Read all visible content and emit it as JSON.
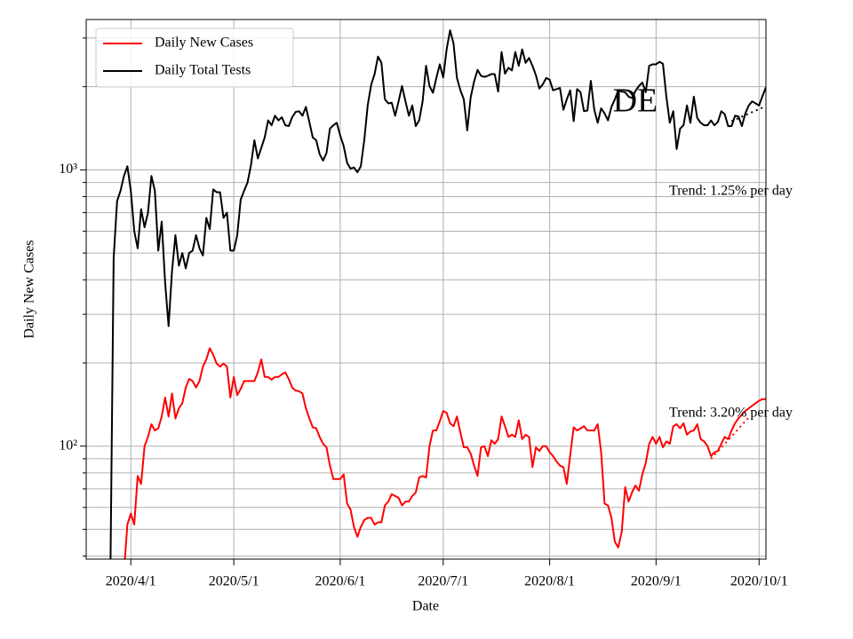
{
  "chart_data": {
    "type": "line",
    "title": "DE",
    "xlabel": "Date",
    "ylabel": "Daily New Cases",
    "yscale": "log",
    "grid": true,
    "legend": "upper left",
    "xlim": [
      "2020/3/19",
      "2020/10/3"
    ],
    "xticks": [
      "2020/4/1",
      "2020/5/1",
      "2020/6/1",
      "2020/7/1",
      "2020/8/1",
      "2020/9/1",
      "2020/10/1"
    ],
    "ylim": [
      39,
      3500
    ],
    "yticks": [
      {
        "value": 100,
        "label": "10²"
      },
      {
        "value": 1000,
        "label": "10³"
      }
    ],
    "yminorticks": [
      40,
      50,
      60,
      70,
      80,
      90,
      200,
      300,
      400,
      500,
      600,
      700,
      800,
      900,
      2000,
      3000
    ],
    "x": [
      "2020/3/26",
      "2020/3/27",
      "2020/3/28",
      "2020/3/29",
      "2020/3/30",
      "2020/3/31",
      "2020/4/1",
      "2020/4/2",
      "2020/4/3",
      "2020/4/4",
      "2020/4/5",
      "2020/4/6",
      "2020/4/7",
      "2020/4/8",
      "2020/4/9",
      "2020/4/10",
      "2020/4/11",
      "2020/4/12",
      "2020/4/13",
      "2020/4/14",
      "2020/4/15",
      "2020/4/16",
      "2020/4/17",
      "2020/4/18",
      "2020/4/19",
      "2020/4/20",
      "2020/4/21",
      "2020/4/22",
      "2020/4/23",
      "2020/4/24",
      "2020/4/25",
      "2020/4/26",
      "2020/4/27",
      "2020/4/28",
      "2020/4/29",
      "2020/4/30",
      "2020/5/1",
      "2020/5/2",
      "2020/5/3",
      "2020/5/4",
      "2020/5/5",
      "2020/5/6",
      "2020/5/7",
      "2020/5/8",
      "2020/5/9",
      "2020/5/10",
      "2020/5/11",
      "2020/5/12",
      "2020/5/13",
      "2020/5/14",
      "2020/5/15",
      "2020/5/16",
      "2020/5/17",
      "2020/5/18",
      "2020/5/19",
      "2020/5/20",
      "2020/5/21",
      "2020/5/22",
      "2020/5/23",
      "2020/5/24",
      "2020/5/25",
      "2020/5/26",
      "2020/5/27",
      "2020/5/28",
      "2020/5/29",
      "2020/5/30",
      "2020/5/31",
      "2020/6/1",
      "2020/6/2",
      "2020/6/3",
      "2020/6/4",
      "2020/6/5",
      "2020/6/6",
      "2020/6/7",
      "2020/6/8",
      "2020/6/9",
      "2020/6/10",
      "2020/6/11",
      "2020/6/12",
      "2020/6/13",
      "2020/6/14",
      "2020/6/15",
      "2020/6/16",
      "2020/6/17",
      "2020/6/18",
      "2020/6/19",
      "2020/6/20",
      "2020/6/21",
      "2020/6/22",
      "2020/6/23",
      "2020/6/24",
      "2020/6/25",
      "2020/6/26",
      "2020/6/27",
      "2020/6/28",
      "2020/6/29",
      "2020/6/30",
      "2020/7/1",
      "2020/7/2",
      "2020/7/3",
      "2020/7/4",
      "2020/7/5",
      "2020/7/6",
      "2020/7/7",
      "2020/7/8",
      "2020/7/9",
      "2020/7/10",
      "2020/7/11",
      "2020/7/12",
      "2020/7/13",
      "2020/7/14",
      "2020/7/15",
      "2020/7/16",
      "2020/7/17",
      "2020/7/18",
      "2020/7/19",
      "2020/7/20",
      "2020/7/21",
      "2020/7/22",
      "2020/7/23",
      "2020/7/24",
      "2020/7/25",
      "2020/7/26",
      "2020/7/27",
      "2020/7/28",
      "2020/7/29",
      "2020/7/30",
      "2020/7/31",
      "2020/8/1",
      "2020/8/2",
      "2020/8/3",
      "2020/8/4",
      "2020/8/5",
      "2020/8/6",
      "2020/8/7",
      "2020/8/8",
      "2020/8/9",
      "2020/8/10",
      "2020/8/11",
      "2020/8/12",
      "2020/8/13",
      "2020/8/14",
      "2020/8/15",
      "2020/8/16",
      "2020/8/17",
      "2020/8/18",
      "2020/8/19",
      "2020/8/20",
      "2020/8/21",
      "2020/8/22",
      "2020/8/23",
      "2020/8/24",
      "2020/8/25",
      "2020/8/26",
      "2020/8/27",
      "2020/8/28",
      "2020/8/29",
      "2020/8/30",
      "2020/8/31",
      "2020/9/1",
      "2020/9/2",
      "2020/9/3",
      "2020/9/4",
      "2020/9/5",
      "2020/9/6",
      "2020/9/7",
      "2020/9/8",
      "2020/9/9",
      "2020/9/10",
      "2020/9/11",
      "2020/9/12",
      "2020/9/13",
      "2020/9/14",
      "2020/9/15",
      "2020/9/16",
      "2020/9/17",
      "2020/9/18",
      "2020/9/19",
      "2020/9/20",
      "2020/9/21",
      "2020/9/22",
      "2020/9/23",
      "2020/9/24",
      "2020/9/25",
      "2020/9/26",
      "2020/9/27",
      "2020/9/28",
      "2020/9/29",
      "2020/9/30",
      "2020/10/1",
      "2020/10/2",
      "2020/10/3"
    ],
    "series": [
      {
        "name": "Daily New Cases",
        "color": "#ff0000",
        "values": [
          null,
          null,
          null,
          null,
          35,
          52,
          57,
          52,
          78,
          73,
          100,
          108,
          120,
          114,
          116,
          128,
          150,
          128,
          155,
          126,
          137,
          143,
          163,
          175,
          172,
          163,
          172,
          194,
          206,
          226,
          214,
          199,
          194,
          199,
          194,
          150,
          178,
          153,
          161,
          172,
          172,
          172,
          172,
          185,
          206,
          178,
          178,
          174,
          178,
          178,
          182,
          185,
          175,
          163,
          159,
          158,
          155,
          137,
          126,
          117,
          116,
          108,
          102,
          99,
          85,
          76,
          76,
          76,
          79,
          62,
          59,
          51,
          47,
          51,
          54,
          55,
          55,
          52,
          53,
          53,
          61,
          63,
          67,
          66,
          65,
          61,
          63,
          63,
          66,
          68,
          77,
          78,
          77,
          100,
          114,
          114,
          123,
          134,
          132,
          121,
          118,
          128,
          112,
          99,
          99,
          94,
          85,
          78,
          99,
          100,
          92,
          105,
          102,
          106,
          128,
          118,
          108,
          110,
          108,
          124,
          106,
          110,
          108,
          84,
          99,
          96,
          100,
          100,
          95,
          92,
          88,
          85,
          84,
          73,
          93,
          117,
          114,
          116,
          118,
          114,
          114,
          114,
          120,
          95,
          62,
          61,
          55,
          45,
          43,
          49,
          71,
          63,
          68,
          72,
          69,
          79,
          87,
          102,
          108,
          102,
          108,
          99,
          104,
          102,
          118,
          120,
          116,
          121,
          110,
          113,
          114,
          120,
          106,
          104,
          100,
          92,
          95,
          96,
          102,
          108,
          106,
          114,
          121,
          126,
          130,
          134,
          137,
          140,
          143,
          146,
          148,
          148
        ]
      },
      {
        "name": "Daily Total Tests",
        "color": "#000000",
        "values": [
          30,
          480,
          770,
          840,
          950,
          1030,
          840,
          600,
          520,
          720,
          620,
          700,
          950,
          840,
          510,
          650,
          390,
          272,
          430,
          580,
          450,
          500,
          440,
          500,
          510,
          580,
          520,
          490,
          670,
          610,
          850,
          830,
          830,
          670,
          700,
          510,
          510,
          580,
          780,
          840,
          900,
          1040,
          1280,
          1100,
          1200,
          1310,
          1510,
          1450,
          1570,
          1510,
          1550,
          1450,
          1440,
          1550,
          1620,
          1630,
          1570,
          1690,
          1490,
          1310,
          1280,
          1140,
          1080,
          1150,
          1410,
          1450,
          1480,
          1330,
          1220,
          1060,
          1010,
          1020,
          980,
          1030,
          1280,
          1710,
          2030,
          2220,
          2570,
          2440,
          1800,
          1740,
          1750,
          1570,
          1770,
          2010,
          1770,
          1570,
          1710,
          1440,
          1510,
          1770,
          2380,
          2010,
          1900,
          2150,
          2410,
          2160,
          2730,
          3200,
          2870,
          2150,
          1940,
          1800,
          1390,
          1830,
          2090,
          2300,
          2190,
          2170,
          2190,
          2220,
          2220,
          1920,
          2670,
          2230,
          2340,
          2290,
          2670,
          2380,
          2730,
          2440,
          2540,
          2380,
          2200,
          1970,
          2040,
          2150,
          2120,
          1940,
          1960,
          1980,
          1650,
          1800,
          1940,
          1500,
          1960,
          1910,
          1630,
          1640,
          2100,
          1650,
          1480,
          1670,
          1600,
          1510,
          1690,
          1800,
          1940,
          1920,
          1910,
          1840,
          1820,
          1930,
          2010,
          2070,
          1910,
          2380,
          2410,
          2410,
          2460,
          2420,
          1840,
          1480,
          1630,
          1190,
          1410,
          1450,
          1710,
          1480,
          1840,
          1540,
          1480,
          1450,
          1450,
          1510,
          1450,
          1490,
          1630,
          1590,
          1440,
          1440,
          1570,
          1560,
          1440,
          1600,
          1710,
          1770,
          1740,
          1710,
          1850,
          1990
        ]
      }
    ],
    "trends": [
      {
        "label": "Trend: 3.20% per day",
        "color": "#ff0000",
        "x": [
          "2020/9/17",
          "2020/9/28"
        ],
        "values": [
          90,
          127
        ]
      },
      {
        "label": "Trend: 1.25% per day",
        "color": "#000000",
        "x": [
          "2020/9/23",
          "2020/10/2"
        ],
        "values": [
          1500,
          1680
        ]
      }
    ]
  }
}
